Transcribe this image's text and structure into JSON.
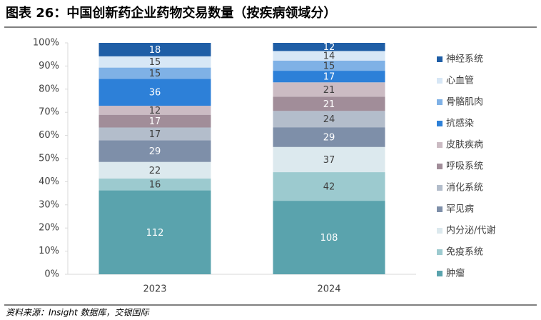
{
  "chart_data": {
    "type": "stacked_percent_bar",
    "title": "图表 26：中国创新药企业药物交易数量（按疾病领域分）",
    "source": "资料来源：Insight 数据库，交银国际",
    "categories": [
      "2023",
      "2024"
    ],
    "ylim": [
      0,
      100
    ],
    "yticks": [
      {
        "value": 0,
        "label": "0%"
      },
      {
        "value": 10,
        "label": "10%"
      },
      {
        "value": 20,
        "label": "20%"
      },
      {
        "value": 30,
        "label": "30%"
      },
      {
        "value": 40,
        "label": "40%"
      },
      {
        "value": 50,
        "label": "50%"
      },
      {
        "value": 60,
        "label": "60%"
      },
      {
        "value": 70,
        "label": "70%"
      },
      {
        "value": 80,
        "label": "80%"
      },
      {
        "value": 90,
        "label": "90%"
      },
      {
        "value": 100,
        "label": "100%"
      }
    ],
    "legend": "right",
    "series": [
      {
        "name": "肿瘤",
        "color": "#5aa3ad",
        "values": [
          112,
          108
        ]
      },
      {
        "name": "免疫系统",
        "color": "#9ccacf",
        "values": [
          16,
          42
        ]
      },
      {
        "name": "内分泌/代谢",
        "color": "#dce9ee",
        "values": [
          22,
          37
        ]
      },
      {
        "name": "罕见病",
        "color": "#7e8fa9",
        "values": [
          29,
          29
        ]
      },
      {
        "name": "消化系统",
        "color": "#b3bdcb",
        "values": [
          17,
          24
        ]
      },
      {
        "name": "呼吸系统",
        "color": "#a18d99",
        "values": [
          17,
          21
        ]
      },
      {
        "name": "皮肤疾病",
        "color": "#cbbbc3",
        "values": [
          12,
          21
        ]
      },
      {
        "name": "抗感染",
        "color": "#2d80d8",
        "values": [
          36,
          17
        ]
      },
      {
        "name": "骨骼肌肉",
        "color": "#7fb1e6",
        "values": [
          15,
          15
        ]
      },
      {
        "name": "心血管",
        "color": "#d7e7f6",
        "values": [
          15,
          14
        ]
      },
      {
        "name": "神经系统",
        "color": "#1f5ea6",
        "values": [
          18,
          12
        ]
      }
    ]
  }
}
